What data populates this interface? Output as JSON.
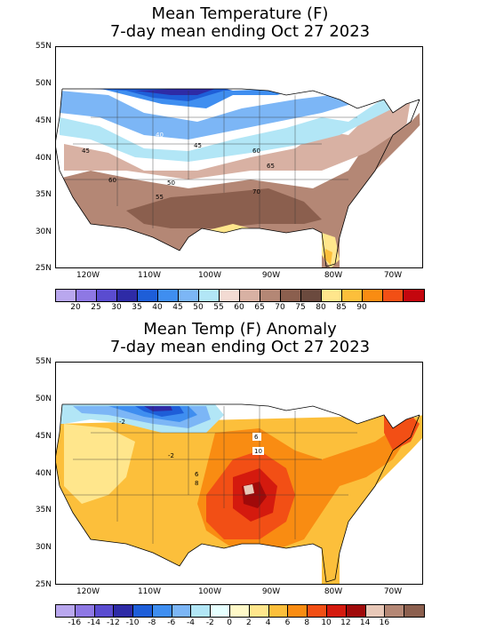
{
  "map1": {
    "title_line1": "Mean Temperature (F)",
    "title_line2": "7-day mean ending Oct 27 2023",
    "lat_labels": [
      "55N",
      "50N",
      "45N",
      "40N",
      "35N",
      "30N",
      "25N"
    ],
    "lon_labels": [
      "120W",
      "110W",
      "100W",
      "90W",
      "80W",
      "70W"
    ],
    "contour_labels": [
      "40",
      "45",
      "45",
      "50",
      "55",
      "60",
      "65",
      "70",
      "60",
      "45"
    ],
    "colorbar": {
      "colors": [
        "#b9a7ee",
        "#8e78e4",
        "#5a4cd0",
        "#2e2ba6",
        "#1e5ed8",
        "#3f8ef0",
        "#7cb6f6",
        "#b2e6f6",
        "#f3dbd3",
        "#d8b1a3",
        "#b48775",
        "#8b5f4e",
        "#6b4a3e",
        "#ffe68c",
        "#fcbf3b",
        "#f98c12",
        "#f24f15",
        "#c4060e"
      ],
      "labels": [
        "20",
        "25",
        "30",
        "35",
        "40",
        "45",
        "50",
        "55",
        "60",
        "65",
        "70",
        "75",
        "80",
        "85",
        "90"
      ]
    }
  },
  "map2": {
    "title_line1": "Mean Temp (F) Anomaly",
    "title_line2": "7-day mean ending Oct 27 2023",
    "lat_labels": [
      "55N",
      "50N",
      "45N",
      "40N",
      "35N",
      "30N",
      "25N"
    ],
    "lon_labels": [
      "120W",
      "110W",
      "100W",
      "90W",
      "80W",
      "70W"
    ],
    "contour_labels": [
      "6",
      "10",
      "6",
      "8",
      "-2",
      "2",
      "4"
    ],
    "colorbar": {
      "colors": [
        "#b9a7ee",
        "#8e78e4",
        "#5a4cd0",
        "#2e2ba6",
        "#1e5ed8",
        "#3f8ef0",
        "#7cb6f6",
        "#b2e6f6",
        "#e6ffff",
        "#fff9c8",
        "#ffe68c",
        "#fcbf3b",
        "#f98c12",
        "#f24f15",
        "#d41a0e",
        "#a00a0a",
        "#e8c8b8",
        "#b48775",
        "#8b5f4e"
      ],
      "labels": [
        "-16",
        "-14",
        "-12",
        "-10",
        "-8",
        "-6",
        "-4",
        "-2",
        "0",
        "2",
        "4",
        "6",
        "8",
        "10",
        "12",
        "14",
        "16"
      ]
    }
  }
}
